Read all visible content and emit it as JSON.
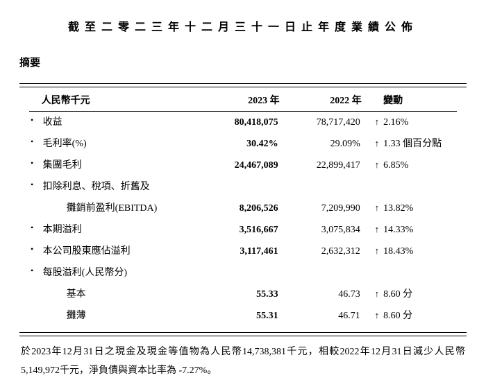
{
  "title": "截至二零二三年十二月三十一日止年度業績公佈",
  "subtitle": "摘要",
  "headers": {
    "unit": "人民幣千元",
    "y2023": "2023 年",
    "y2022": "2022 年",
    "change": "變動"
  },
  "rows": [
    {
      "bullet": "•",
      "label": "收益",
      "y2023": "80,418,075",
      "y2022": "78,717,420",
      "arrow": "↑",
      "change": "2.16%"
    },
    {
      "bullet": "•",
      "label": "毛利率(%)",
      "y2023": "30.42%",
      "y2022": "29.09%",
      "arrow": "↑",
      "change": "1.33 個百分點"
    },
    {
      "bullet": "•",
      "label": "集團毛利",
      "y2023": "24,467,089",
      "y2022": "22,899,417",
      "arrow": "↑",
      "change": "6.85%"
    },
    {
      "bullet": "•",
      "label": "扣除利息、稅項、折舊及",
      "y2023": "",
      "y2022": "",
      "arrow": "",
      "change": ""
    },
    {
      "bullet": "",
      "label": "攤銷前盈利(EBITDA)",
      "indent": true,
      "y2023": "8,206,526",
      "y2022": "7,209,990",
      "arrow": "↑",
      "change": "13.82%"
    },
    {
      "bullet": "•",
      "label": "本期溢利",
      "y2023": "3,516,667",
      "y2022": "3,075,834",
      "arrow": "↑",
      "change": "14.33%"
    },
    {
      "bullet": "•",
      "label": "本公司股東應佔溢利",
      "y2023": "3,117,461",
      "y2022": "2,632,312",
      "arrow": "↑",
      "change": "18.43%"
    },
    {
      "bullet": "•",
      "label": "每股溢利(人民幣分)",
      "y2023": "",
      "y2022": "",
      "arrow": "",
      "change": ""
    },
    {
      "bullet": "",
      "label": "基本",
      "indent": true,
      "y2023": "55.33",
      "y2022": "46.73",
      "arrow": "↑",
      "change": "8.60 分"
    },
    {
      "bullet": "",
      "label": "攤薄",
      "indent": true,
      "y2023": "55.31",
      "y2022": "46.71",
      "arrow": "↑",
      "change": "8.60 分"
    }
  ],
  "footnote": "於2023年12月31日之現金及現金等值物為人民幣14,738,381千元，相較2022年12月31日減少人民幣5,149,972千元，淨負債與資本比率為 -7.27%。",
  "colors": {
    "text": "#000000",
    "background": "#ffffff",
    "border": "#000000"
  },
  "fonts": {
    "title_size": 16,
    "body_size": 14,
    "line_height": 1.5
  }
}
